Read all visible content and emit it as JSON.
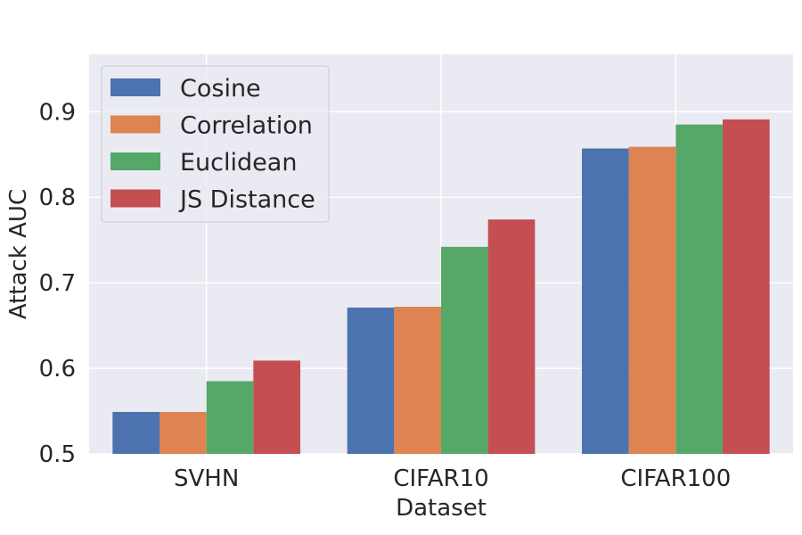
{
  "chart_data": {
    "type": "bar",
    "title": "",
    "xlabel": "Dataset",
    "ylabel": "Attack AUC",
    "categories": [
      "SVHN",
      "CIFAR10",
      "CIFAR100"
    ],
    "series": [
      {
        "name": "Cosine",
        "color": "#4c72b0",
        "values": [
          0.549,
          0.671,
          0.857
        ]
      },
      {
        "name": "Correlation",
        "color": "#dd8452",
        "values": [
          0.549,
          0.672,
          0.859
        ]
      },
      {
        "name": "Euclidean",
        "color": "#55a868",
        "values": [
          0.585,
          0.742,
          0.885
        ]
      },
      {
        "name": "JS Distance",
        "color": "#c44e52",
        "values": [
          0.609,
          0.774,
          0.891
        ]
      }
    ],
    "ylim": [
      0.5,
      0.967
    ],
    "yticks": [
      0.5,
      0.6,
      0.7,
      0.8,
      0.9
    ],
    "ytick_labels": [
      "0.5",
      "0.6",
      "0.7",
      "0.8",
      "0.9"
    ],
    "grid": true,
    "legend_position": "top-left",
    "background_color": "#eaeaf2",
    "grid_color": "#ffffff"
  }
}
